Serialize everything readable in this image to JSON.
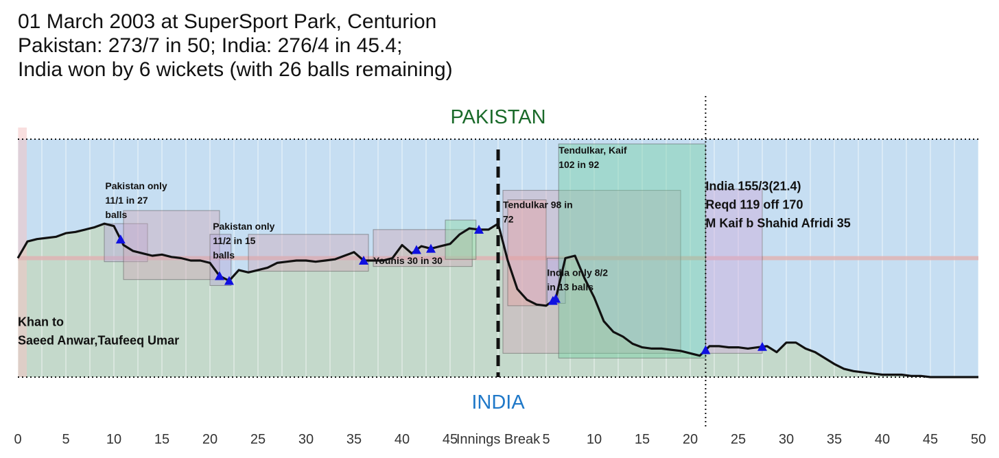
{
  "title_lines": [
    "01 March 2003 at SuperSport Park, Centurion",
    "Pakistan: 273/7 in 50; India: 276/4 in 45.4;",
    "India won by 6 wickets (with 26 balls remaining)"
  ],
  "colors": {
    "pakistan_label": "#1a6a2a",
    "india_label": "#1f78c8",
    "pakistan_zone": "#c6def2",
    "india_zone": "#c4d9cb",
    "worm": "#111111",
    "wicket": "#1010e0",
    "midline": "#e0b4b4"
  },
  "chart_data": {
    "type": "line",
    "team_labels": {
      "top": "PAKISTAN",
      "bottom": "INDIA"
    },
    "break_label": "Innings Break",
    "x_ticks_first_innings": [
      "0",
      "5",
      "10",
      "15",
      "20",
      "25",
      "30",
      "35",
      "40",
      "45"
    ],
    "x_ticks_second_innings": [
      "5",
      "10",
      "15",
      "20",
      "25",
      "30",
      "35",
      "40",
      "45",
      "50"
    ],
    "x_range": [
      0,
      100
    ],
    "y_range": [
      -100,
      100
    ],
    "worm": {
      "x": [
        0,
        1,
        2,
        3,
        4,
        5,
        6,
        7,
        8,
        9,
        10,
        11,
        12,
        13,
        14,
        15,
        16,
        17,
        18,
        19,
        20,
        21,
        22,
        23,
        24,
        25,
        26,
        27,
        28,
        29,
        30,
        31,
        32,
        33,
        34,
        35,
        36,
        37,
        38,
        39,
        40,
        41,
        42,
        43,
        44,
        45,
        46,
        47,
        48,
        49,
        50,
        51,
        52,
        53,
        54,
        55,
        56,
        57,
        58,
        59,
        60,
        61,
        62,
        63,
        64,
        65,
        66,
        67,
        68,
        69,
        70,
        71,
        72,
        73,
        74,
        75,
        76,
        77,
        78,
        79,
        80,
        81,
        82,
        83,
        84,
        85,
        86,
        87,
        88,
        89,
        90,
        91,
        92,
        93,
        94,
        95,
        96,
        97,
        98,
        99,
        100
      ],
      "y": [
        0,
        14,
        16,
        17,
        18,
        21,
        22,
        24,
        26,
        29,
        27,
        11,
        6,
        4,
        2,
        3,
        1,
        0,
        -2,
        -2,
        -4,
        -15,
        -19,
        -10,
        -12,
        -10,
        -8,
        -4,
        -3,
        -2,
        -2,
        -3,
        -2,
        -1,
        2,
        5,
        -2,
        -2,
        -2,
        0,
        11,
        4,
        10,
        8,
        10,
        12,
        20,
        25,
        24,
        24,
        29,
        -2,
        -26,
        -35,
        -39,
        -40,
        -34,
        0,
        2,
        -17,
        -33,
        -53,
        -62,
        -66,
        -72,
        -75,
        -76,
        -76,
        -77,
        -78,
        -80,
        -82,
        -74,
        -74,
        -75,
        -75,
        -76,
        -75,
        -74,
        -79,
        -71,
        -71,
        -76,
        -79,
        -84,
        -89,
        -93,
        -95,
        -96,
        -97,
        -98,
        -98,
        -98,
        -99,
        -99,
        -100,
        -100,
        -100,
        -100,
        -100,
        -100
      ]
    },
    "wickets_x": [
      10.7,
      21,
      22,
      36,
      41.5,
      43,
      48,
      55.7,
      56,
      71.6,
      77.5
    ],
    "partnership_boxes": [
      {
        "x0": 9,
        "x1": 13.5,
        "y0": -3,
        "y1": 29
      },
      {
        "x0": 11,
        "x1": 21,
        "y0": -18,
        "y1": 40
      },
      {
        "x0": 20,
        "x1": 22.2,
        "y0": -23,
        "y1": 20
      },
      {
        "x0": 24,
        "x1": 36.5,
        "y0": -11,
        "y1": 20
      },
      {
        "x0": 37,
        "x1": 47.3,
        "y0": -7,
        "y1": 24
      },
      {
        "x0": 44.5,
        "x1": 47.7,
        "y0": -1,
        "y1": 32
      },
      {
        "x0": 50.5,
        "x1": 69,
        "y0": -80,
        "y1": 57
      },
      {
        "x0": 51,
        "x1": 55,
        "y0": -40,
        "y1": 49
      },
      {
        "x0": 55.1,
        "x1": 57,
        "y0": -38,
        "y1": 0
      },
      {
        "x0": 56.3,
        "x1": 71.6,
        "y0": -84,
        "y1": 96
      },
      {
        "x0": 71.6,
        "x1": 77.5,
        "y0": -80,
        "y1": 58
      }
    ],
    "annotations": [
      {
        "x": 9.1,
        "y": 58,
        "lines": [
          "Pakistan only",
          "11/1 in 27",
          "balls"
        ]
      },
      {
        "x": 20.3,
        "y": 24,
        "lines": [
          "Pakistan only",
          "11/2 in 15",
          "balls"
        ]
      },
      {
        "x": 37,
        "y": -5,
        "lines": [
          "Younis 30 in 30"
        ]
      },
      {
        "x": 50.5,
        "y": 42,
        "lines": [
          "Tendulkar 98 in",
          "72"
        ]
      },
      {
        "x": 55.1,
        "y": -15,
        "lines": [
          "India only 8/2",
          "in 13 balls"
        ]
      },
      {
        "x": 56.3,
        "y": 88,
        "lines": [
          "Tendulkar, Kaif",
          "102 in 92"
        ]
      },
      {
        "x": 71.6,
        "y": 57,
        "lines": [
          "India 155/3(21.4)",
          "Reqd 119 off 170",
          "M Kaif  b Shahid Afridi 35"
        ]
      },
      {
        "x": 0,
        "y": -57,
        "lines": [
          "Khan to",
          "Saeed Anwar,Taufeeq Umar"
        ]
      }
    ],
    "innings_break_x": 50,
    "marker_x": 71.6,
    "grid": true,
    "legend": "none"
  }
}
